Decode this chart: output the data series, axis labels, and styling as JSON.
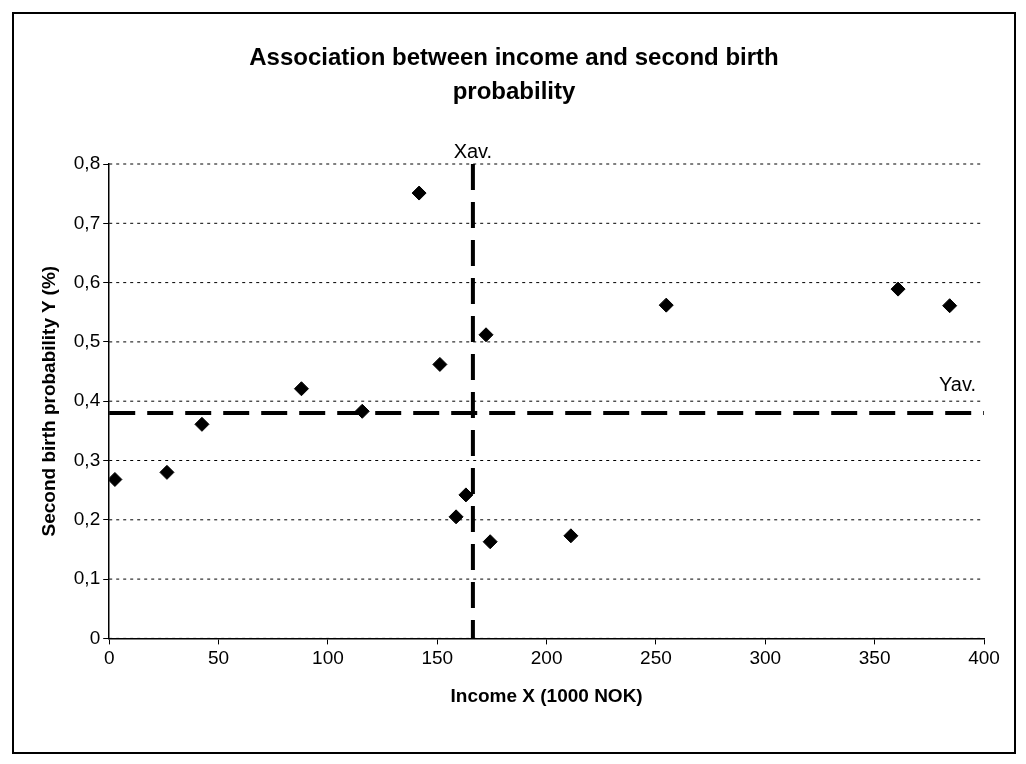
{
  "chart_data": {
    "type": "scatter",
    "title": "Association between income and second birth probability",
    "xlabel": "Income X (1000 NOK)",
    "ylabel": "Second birth probability Y (%)",
    "x": [
      2.6,
      26.4,
      42.4,
      87.9,
      115.7,
      141.7,
      151.2,
      172.3,
      163.1,
      158.6,
      174.2,
      211.1,
      254.7,
      360.7,
      384.3
    ],
    "series": [
      {
        "color": "#000000",
        "values": [
          0.268,
          0.28,
          0.361,
          0.421,
          0.383,
          0.751,
          0.462,
          0.512,
          0.242,
          0.205,
          0.163,
          0.173,
          0.562,
          0.589,
          0.561
        ]
      }
    ],
    "xlim": [
      0,
      400
    ],
    "xticks": [
      0,
      50,
      100,
      150,
      200,
      250,
      300,
      350,
      400
    ],
    "ylim": [
      0,
      0.8
    ],
    "yticks": [
      {
        "value": 0,
        "label": "0"
      },
      {
        "value": 0.1,
        "label": "0,1"
      },
      {
        "value": 0.2,
        "label": "0,2"
      },
      {
        "value": 0.3,
        "label": "0,3"
      },
      {
        "value": 0.4,
        "label": "0,4"
      },
      {
        "value": 0.5,
        "label": "0,5"
      },
      {
        "value": 0.6,
        "label": "0,6"
      },
      {
        "value": 0.7,
        "label": "0,7"
      },
      {
        "value": 0.8,
        "label": "0,8"
      }
    ],
    "ref_lines": [
      {
        "axis": "x",
        "value": 166.3,
        "label": "Xav.",
        "color": "#000000",
        "line_style": "dashed"
      },
      {
        "axis": "y",
        "value": 0.38,
        "label": "Yav.",
        "color": "#000000",
        "line_style": "dashed"
      }
    ],
    "grid": "y",
    "legend": false,
    "marker": "diamond"
  }
}
